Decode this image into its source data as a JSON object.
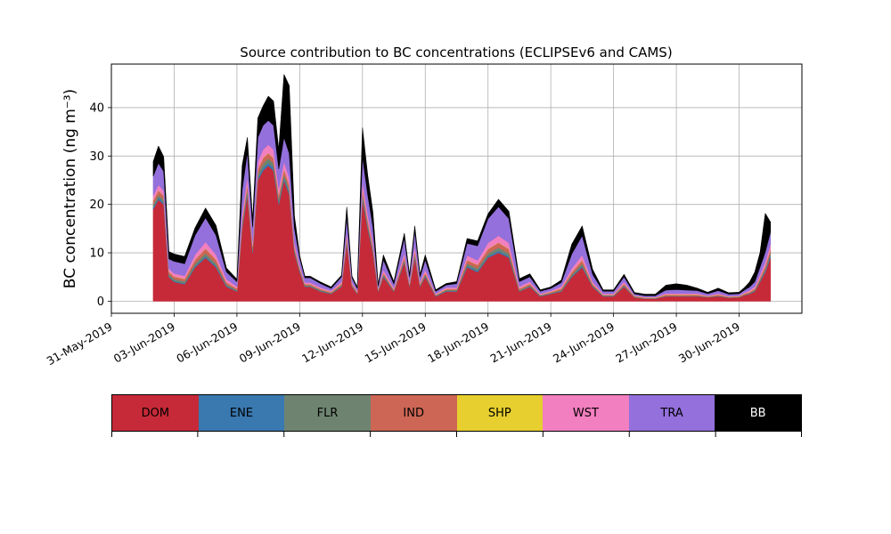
{
  "chart_data": {
    "type": "area",
    "stacked": true,
    "title": "Source contribution to BC concentrations (ECLIPSEv6 and CAMS)",
    "ylabel": "BC concentration (ng m⁻³)",
    "xlabel": "",
    "ylim": [
      -2.5,
      49
    ],
    "xlim": [
      "2019-05-31",
      "2019-07-03"
    ],
    "grid": true,
    "x_tick_labels": [
      "31-May-2019",
      "03-Jun-2019",
      "06-Jun-2019",
      "09-Jun-2019",
      "12-Jun-2019",
      "15-Jun-2019",
      "18-Jun-2019",
      "21-Jun-2019",
      "24-Jun-2019",
      "27-Jun-2019",
      "30-Jun-2019"
    ],
    "y_ticks": [
      0,
      10,
      20,
      30,
      40
    ],
    "x": [
      "2019-06-02T00",
      "2019-06-02T06",
      "2019-06-02T12",
      "2019-06-02T18",
      "2019-06-03T00",
      "2019-06-03T12",
      "2019-06-04T00",
      "2019-06-04T12",
      "2019-06-05T00",
      "2019-06-05T12",
      "2019-06-06T00",
      "2019-06-06T06",
      "2019-06-06T12",
      "2019-06-06T18",
      "2019-06-07T00",
      "2019-06-07T06",
      "2019-06-07T12",
      "2019-06-07T18",
      "2019-06-08T00",
      "2019-06-08T06",
      "2019-06-08T12",
      "2019-06-08T18",
      "2019-06-09T00",
      "2019-06-09T06",
      "2019-06-09T12",
      "2019-06-10T00",
      "2019-06-10T12",
      "2019-06-11T00",
      "2019-06-11T06",
      "2019-06-11T12",
      "2019-06-11T18",
      "2019-06-12T00",
      "2019-06-12T06",
      "2019-06-12T12",
      "2019-06-12T18",
      "2019-06-13T00",
      "2019-06-13T12",
      "2019-06-14T00",
      "2019-06-14T06",
      "2019-06-14T12",
      "2019-06-14T18",
      "2019-06-15T00",
      "2019-06-15T12",
      "2019-06-16T00",
      "2019-06-16T12",
      "2019-06-17T00",
      "2019-06-17T12",
      "2019-06-18T00",
      "2019-06-18T12",
      "2019-06-19T00",
      "2019-06-19T12",
      "2019-06-20T00",
      "2019-06-20T12",
      "2019-06-21T00",
      "2019-06-21T12",
      "2019-06-22T00",
      "2019-06-22T12",
      "2019-06-23T00",
      "2019-06-23T12",
      "2019-06-24T00",
      "2019-06-24T12",
      "2019-06-25T00",
      "2019-06-25T12",
      "2019-06-26T00",
      "2019-06-26T12",
      "2019-06-27T00",
      "2019-06-27T12",
      "2019-06-28T00",
      "2019-06-28T12",
      "2019-06-29T00",
      "2019-06-29T12",
      "2019-06-30T00",
      "2019-06-30T06",
      "2019-06-30T12",
      "2019-06-30T18",
      "2019-07-01T00",
      "2019-07-01T06",
      "2019-07-01T12"
    ],
    "series": [
      {
        "name": "DOM",
        "color": "#c62a38",
        "values": [
          19,
          21,
          20,
          5,
          4,
          3.5,
          7,
          9,
          7,
          3,
          2,
          15,
          22,
          10,
          25,
          27,
          28,
          27,
          20,
          25,
          22,
          10,
          6,
          3,
          3,
          2,
          1.5,
          3,
          12,
          3,
          1.5,
          21,
          15,
          10,
          2,
          5,
          2,
          8,
          3,
          9,
          3,
          5,
          1,
          2,
          2,
          7,
          6,
          9,
          10,
          9,
          2,
          3,
          1,
          1.5,
          2,
          5,
          7,
          3,
          1,
          1,
          3,
          0.8,
          0.5,
          0.5,
          1,
          1,
          1,
          1,
          0.8,
          1,
          0.7,
          0.8,
          1.2,
          1.5,
          2,
          4,
          6,
          9
        ]
      },
      {
        "name": "ENE",
        "color": "#3a78b0",
        "values": [
          0.4,
          0.4,
          0.4,
          0.2,
          0.2,
          0.2,
          0.3,
          0.3,
          0.3,
          0.2,
          0.1,
          0.4,
          0.5,
          0.3,
          0.5,
          0.6,
          0.6,
          0.6,
          0.4,
          0.5,
          0.5,
          0.3,
          0.2,
          0.1,
          0.1,
          0.1,
          0.1,
          0.1,
          0.3,
          0.1,
          0.1,
          0.5,
          0.4,
          0.3,
          0.1,
          0.2,
          0.1,
          0.2,
          0.1,
          0.3,
          0.1,
          0.2,
          0.1,
          0.1,
          0.1,
          0.3,
          0.3,
          0.3,
          0.4,
          0.3,
          0.1,
          0.1,
          0.1,
          0.1,
          0.1,
          0.2,
          0.3,
          0.1,
          0.1,
          0.1,
          0.1,
          0.05,
          0.05,
          0.05,
          0.05,
          0.05,
          0.05,
          0.05,
          0.05,
          0.05,
          0.05,
          0.05,
          0.05,
          0.1,
          0.1,
          0.2,
          0.3,
          0.4
        ]
      },
      {
        "name": "FLR",
        "color": "#6e8470",
        "values": [
          0.6,
          0.6,
          0.6,
          0.4,
          0.4,
          0.4,
          0.5,
          0.6,
          0.5,
          0.3,
          0.2,
          0.6,
          0.8,
          0.5,
          0.8,
          0.9,
          0.9,
          0.9,
          0.7,
          0.8,
          0.7,
          0.4,
          0.3,
          0.2,
          0.2,
          0.2,
          0.1,
          0.2,
          0.5,
          0.2,
          0.1,
          0.8,
          0.6,
          0.5,
          0.1,
          0.3,
          0.1,
          0.4,
          0.2,
          0.5,
          0.2,
          0.3,
          0.1,
          0.2,
          0.2,
          0.5,
          0.5,
          0.6,
          0.7,
          0.6,
          0.2,
          0.2,
          0.1,
          0.1,
          0.2,
          0.3,
          0.5,
          0.2,
          0.1,
          0.1,
          0.2,
          0.1,
          0.05,
          0.05,
          0.1,
          0.1,
          0.1,
          0.1,
          0.05,
          0.1,
          0.05,
          0.05,
          0.1,
          0.1,
          0.2,
          0.3,
          0.4,
          0.6
        ]
      },
      {
        "name": "IND",
        "color": "#cd6655",
        "values": [
          0.8,
          0.9,
          0.8,
          0.5,
          0.5,
          0.5,
          0.8,
          1,
          0.8,
          0.4,
          0.3,
          0.8,
          1,
          0.6,
          1,
          1.1,
          1.1,
          1.1,
          0.9,
          1,
          0.9,
          0.5,
          0.4,
          0.2,
          0.2,
          0.2,
          0.2,
          0.3,
          0.7,
          0.2,
          0.2,
          1,
          0.8,
          0.6,
          0.2,
          0.4,
          0.2,
          0.6,
          0.3,
          0.7,
          0.3,
          0.4,
          0.1,
          0.2,
          0.2,
          0.7,
          0.7,
          0.9,
          1,
          0.9,
          0.3,
          0.3,
          0.1,
          0.2,
          0.3,
          0.5,
          0.7,
          0.3,
          0.1,
          0.1,
          0.3,
          0.1,
          0.1,
          0.1,
          0.2,
          0.2,
          0.2,
          0.2,
          0.1,
          0.2,
          0.1,
          0.1,
          0.2,
          0.2,
          0.3,
          0.4,
          0.6,
          0.8
        ]
      },
      {
        "name": "SHP",
        "color": "#e6cf2e",
        "values": [
          0.05,
          0.05,
          0.05,
          0.05,
          0.05,
          0.05,
          0.05,
          0.05,
          0.05,
          0.05,
          0.05,
          0.05,
          0.05,
          0.05,
          0.05,
          0.05,
          0.05,
          0.05,
          0.05,
          0.05,
          0.05,
          0.05,
          0.05,
          0.05,
          0.05,
          0.05,
          0.05,
          0.05,
          0.05,
          0.05,
          0.05,
          0.05,
          0.05,
          0.05,
          0.05,
          0.05,
          0.05,
          0.05,
          0.05,
          0.05,
          0.05,
          0.05,
          0.05,
          0.05,
          0.05,
          0.05,
          0.05,
          0.05,
          0.05,
          0.05,
          0.05,
          0.05,
          0.05,
          0.05,
          0.05,
          0.05,
          0.05,
          0.05,
          0.05,
          0.05,
          0.05,
          0.05,
          0.05,
          0.05,
          0.05,
          0.05,
          0.05,
          0.05,
          0.05,
          0.05,
          0.05,
          0.05,
          0.05,
          0.05,
          0.05,
          0.05,
          0.05,
          0.05
        ]
      },
      {
        "name": "WST",
        "color": "#f27fbf",
        "values": [
          1,
          1.1,
          1,
          0.6,
          0.6,
          0.6,
          1,
          1.3,
          1,
          0.6,
          0.4,
          1.2,
          1.5,
          0.9,
          1.5,
          1.7,
          1.7,
          1.7,
          1.3,
          1.5,
          1.4,
          0.8,
          0.5,
          0.3,
          0.3,
          0.3,
          0.2,
          0.4,
          0.9,
          0.3,
          0.2,
          1.5,
          1.2,
          0.9,
          0.2,
          0.6,
          0.3,
          0.8,
          0.4,
          1,
          0.4,
          0.6,
          0.2,
          0.3,
          0.3,
          0.9,
          0.9,
          1.2,
          1.4,
          1.2,
          0.4,
          0.4,
          0.2,
          0.2,
          0.4,
          0.7,
          1,
          0.4,
          0.2,
          0.2,
          0.4,
          0.1,
          0.1,
          0.1,
          0.2,
          0.2,
          0.2,
          0.2,
          0.1,
          0.2,
          0.1,
          0.1,
          0.2,
          0.3,
          0.4,
          0.6,
          0.8,
          1
        ]
      },
      {
        "name": "TRA",
        "color": "#9370db",
        "values": [
          4,
          4.5,
          4,
          2,
          2.5,
          2.5,
          4,
          5,
          4,
          1.5,
          1,
          5,
          5,
          3,
          5,
          5,
          5,
          5,
          4,
          5,
          5,
          3,
          1.5,
          1,
          1,
          0.8,
          0.5,
          1,
          3,
          1,
          0.5,
          5,
          4,
          3,
          0.5,
          2,
          0.8,
          3,
          1,
          3,
          1,
          2,
          0.5,
          0.5,
          0.8,
          2.5,
          3,
          5,
          6,
          5,
          1,
          1,
          0.5,
          0.5,
          0.8,
          3,
          4,
          1.5,
          0.5,
          0.5,
          1,
          0.3,
          0.3,
          0.3,
          0.7,
          0.8,
          0.7,
          0.6,
          0.4,
          0.6,
          0.4,
          0.4,
          0.5,
          0.7,
          1,
          1.5,
          2,
          2.5
        ]
      },
      {
        "name": "BB",
        "color": "#000000",
        "values": [
          3,
          3.5,
          3,
          1.5,
          1.5,
          1.5,
          1.5,
          2,
          2,
          0.8,
          0.5,
          5,
          3,
          1.5,
          4,
          4,
          5,
          5,
          4,
          13,
          14,
          2.5,
          0.5,
          0.3,
          0.3,
          0.3,
          0.3,
          0.3,
          2,
          0.3,
          0.3,
          6,
          4,
          3,
          0.3,
          1,
          0.5,
          1,
          0.5,
          1,
          0.5,
          1,
          0.3,
          0.3,
          0.4,
          1,
          1,
          1,
          1.5,
          1.5,
          0.6,
          0.6,
          0.3,
          0.3,
          0.5,
          2,
          2,
          1,
          0.3,
          0.3,
          0.5,
          0.3,
          0.3,
          0.3,
          1,
          1.2,
          1,
          0.5,
          0.3,
          0.5,
          0.3,
          0.3,
          0.5,
          1,
          2,
          3,
          8,
          2
        ]
      }
    ]
  }
}
